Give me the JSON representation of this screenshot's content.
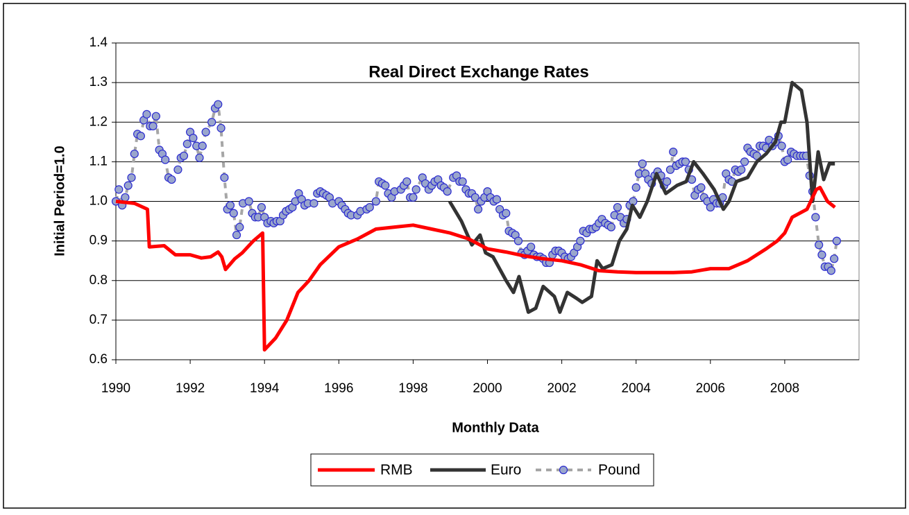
{
  "chart_data": {
    "type": "line",
    "title": "Real Direct Exchange Rates",
    "x_label": "Monthly Data",
    "y_label": "Initial Period=1.0",
    "xlim": [
      1990,
      2010
    ],
    "xticks": [
      1990,
      1992,
      1994,
      1996,
      1998,
      2000,
      2002,
      2004,
      2006,
      2008
    ],
    "ylim": [
      0.6,
      1.4
    ],
    "yticks": [
      0.6,
      0.7,
      0.8,
      0.9,
      {
        "value": 1,
        "label": "1.0"
      },
      1.1,
      1.2,
      1.3,
      1.4
    ],
    "grid": true,
    "legend": "bottom",
    "series": [
      {
        "name": "RMB",
        "color": "#ff0000",
        "line_style": "solid",
        "x": [
          1990.0,
          1990.5,
          1990.85,
          1990.9,
          1991.3,
          1991.6,
          1992.0,
          1992.3,
          1992.55,
          1992.75,
          1992.85,
          1992.95,
          1993.2,
          1993.4,
          1993.7,
          1993.95,
          1994.0,
          1994.3,
          1994.6,
          1994.9,
          1995.2,
          1995.5,
          1996.0,
          1996.5,
          1997.0,
          1997.5,
          1998.0,
          1998.5,
          1999.0,
          1999.5,
          2000.0,
          2000.5,
          2001.0,
          2001.5,
          2002.0,
          2002.5,
          2003.0,
          2003.5,
          2004.0,
          2004.5,
          2005.0,
          2005.5,
          2006.0,
          2006.5,
          2007.0,
          2007.5,
          2007.8,
          2008.0,
          2008.2,
          2008.6,
          2008.85,
          2008.95,
          2009.15,
          2009.35
        ],
        "values": [
          1.0,
          0.995,
          0.98,
          0.885,
          0.888,
          0.865,
          0.865,
          0.857,
          0.86,
          0.872,
          0.86,
          0.828,
          0.855,
          0.87,
          0.9,
          0.92,
          0.625,
          0.655,
          0.7,
          0.77,
          0.8,
          0.84,
          0.885,
          0.905,
          0.93,
          0.935,
          0.94,
          0.93,
          0.92,
          0.905,
          0.88,
          0.872,
          0.862,
          0.855,
          0.85,
          0.84,
          0.825,
          0.822,
          0.82,
          0.82,
          0.82,
          0.822,
          0.83,
          0.83,
          0.85,
          0.88,
          0.9,
          0.92,
          0.96,
          0.98,
          1.03,
          1.035,
          1.0,
          0.985
        ]
      },
      {
        "name": "Euro",
        "color": "#333333",
        "line_style": "solid",
        "x": [
          1998.98,
          1999.3,
          1999.58,
          1999.8,
          1999.95,
          2000.15,
          2000.5,
          2000.7,
          2000.85,
          2001.1,
          2001.3,
          2001.5,
          2001.8,
          2001.95,
          2002.15,
          2002.4,
          2002.55,
          2002.8,
          2002.95,
          2003.1,
          2003.35,
          2003.55,
          2003.75,
          2003.9,
          2004.1,
          2004.3,
          2004.55,
          2004.8,
          2005.1,
          2005.35,
          2005.55,
          2005.8,
          2006.1,
          2006.35,
          2006.5,
          2006.7,
          2007.0,
          2007.25,
          2007.5,
          2007.75,
          2007.9,
          2008.0,
          2008.2,
          2008.45,
          2008.6,
          2008.75,
          2008.9,
          2009.05,
          2009.2,
          2009.35
        ],
        "values": [
          1.0,
          0.95,
          0.89,
          0.915,
          0.87,
          0.86,
          0.8,
          0.77,
          0.81,
          0.72,
          0.73,
          0.785,
          0.76,
          0.72,
          0.77,
          0.755,
          0.745,
          0.76,
          0.85,
          0.83,
          0.84,
          0.9,
          0.93,
          0.99,
          0.96,
          1.0,
          1.07,
          1.02,
          1.04,
          1.05,
          1.1,
          1.07,
          1.03,
          0.98,
          1.0,
          1.05,
          1.06,
          1.1,
          1.12,
          1.15,
          1.2,
          1.2,
          1.3,
          1.28,
          1.2,
          1.0,
          1.125,
          1.055,
          1.095,
          1.095
        ]
      },
      {
        "name": "Pound",
        "color": "#a6a6a6",
        "line_style": "dashed",
        "marker": "circle",
        "marker_color": "#9aa6cc",
        "marker_edge": "#2a2ad0",
        "x": [
          1990.0,
          1990.08,
          1990.17,
          1990.25,
          1990.33,
          1990.42,
          1990.5,
          1990.58,
          1990.67,
          1990.75,
          1990.83,
          1990.92,
          1991.0,
          1991.08,
          1991.17,
          1991.25,
          1991.33,
          1991.42,
          1991.5,
          1991.67,
          1991.75,
          1991.83,
          1991.92,
          1992.0,
          1992.08,
          1992.17,
          1992.25,
          1992.33,
          1992.42,
          1992.58,
          1992.67,
          1992.75,
          1992.83,
          1992.92,
          1993.0,
          1993.08,
          1993.17,
          1993.25,
          1993.33,
          1993.42,
          1993.58,
          1993.67,
          1993.75,
          1993.83,
          1993.92,
          1994.0,
          1994.08,
          1994.17,
          1994.25,
          1994.33,
          1994.42,
          1994.5,
          1994.58,
          1994.67,
          1994.75,
          1994.83,
          1994.92,
          1995.0,
          1995.08,
          1995.17,
          1995.33,
          1995.42,
          1995.5,
          1995.58,
          1995.67,
          1995.75,
          1995.83,
          1996.0,
          1996.08,
          1996.17,
          1996.25,
          1996.33,
          1996.5,
          1996.58,
          1996.75,
          1996.83,
          1997.0,
          1997.08,
          1997.17,
          1997.25,
          1997.33,
          1997.42,
          1997.5,
          1997.67,
          1997.75,
          1997.83,
          1997.92,
          1998.0,
          1998.08,
          1998.25,
          1998.33,
          1998.42,
          1998.5,
          1998.58,
          1998.67,
          1998.75,
          1998.83,
          1998.92,
          1999.08,
          1999.17,
          1999.25,
          1999.33,
          1999.42,
          1999.5,
          1999.58,
          1999.67,
          1999.75,
          1999.83,
          1999.92,
          2000.0,
          2000.08,
          2000.17,
          2000.25,
          2000.33,
          2000.42,
          2000.5,
          2000.58,
          2000.67,
          2000.75,
          2000.83,
          2000.92,
          2001.0,
          2001.08,
          2001.17,
          2001.25,
          2001.33,
          2001.42,
          2001.5,
          2001.58,
          2001.67,
          2001.75,
          2001.83,
          2001.92,
          2002.0,
          2002.08,
          2002.17,
          2002.25,
          2002.33,
          2002.42,
          2002.5,
          2002.58,
          2002.67,
          2002.75,
          2002.83,
          2002.92,
          2003.0,
          2003.08,
          2003.17,
          2003.25,
          2003.33,
          2003.42,
          2003.5,
          2003.58,
          2003.67,
          2003.75,
          2003.83,
          2003.92,
          2004.0,
          2004.08,
          2004.17,
          2004.25,
          2004.33,
          2004.42,
          2004.5,
          2004.58,
          2004.67,
          2004.75,
          2004.83,
          2004.92,
          2005.0,
          2005.08,
          2005.17,
          2005.25,
          2005.33,
          2005.42,
          2005.5,
          2005.58,
          2005.67,
          2005.75,
          2005.83,
          2005.92,
          2006.0,
          2006.08,
          2006.17,
          2006.25,
          2006.33,
          2006.42,
          2006.5,
          2006.58,
          2006.67,
          2006.75,
          2006.83,
          2006.92,
          2007.0,
          2007.08,
          2007.17,
          2007.25,
          2007.33,
          2007.42,
          2007.5,
          2007.58,
          2007.67,
          2007.75,
          2007.83,
          2007.92,
          2008.0,
          2008.08,
          2008.17,
          2008.25,
          2008.33,
          2008.42,
          2008.5,
          2008.58,
          2008.67,
          2008.75,
          2008.83,
          2008.92,
          2009.0,
          2009.08,
          2009.17,
          2009.25,
          2009.33,
          2009.4
        ],
        "values": [
          1.0,
          1.03,
          0.99,
          1.01,
          1.04,
          1.06,
          1.12,
          1.17,
          1.165,
          1.205,
          1.22,
          1.19,
          1.19,
          1.215,
          1.13,
          1.12,
          1.105,
          1.06,
          1.055,
          1.08,
          1.11,
          1.115,
          1.145,
          1.175,
          1.16,
          1.14,
          1.11,
          1.14,
          1.175,
          1.2,
          1.235,
          1.245,
          1.185,
          1.06,
          0.98,
          0.99,
          0.97,
          0.915,
          0.935,
          0.995,
          1.0,
          0.97,
          0.96,
          0.96,
          0.985,
          0.96,
          0.945,
          0.95,
          0.945,
          0.95,
          0.95,
          0.965,
          0.975,
          0.98,
          0.985,
          1.0,
          1.02,
          1.005,
          0.99,
          0.995,
          0.995,
          1.02,
          1.025,
          1.02,
          1.015,
          1.01,
          0.995,
          1.0,
          0.99,
          0.98,
          0.97,
          0.965,
          0.965,
          0.975,
          0.98,
          0.985,
          1.0,
          1.05,
          1.045,
          1.04,
          1.02,
          1.01,
          1.025,
          1.03,
          1.04,
          1.05,
          1.01,
          1.01,
          1.03,
          1.06,
          1.045,
          1.03,
          1.04,
          1.05,
          1.055,
          1.04,
          1.035,
          1.025,
          1.06,
          1.065,
          1.05,
          1.05,
          1.03,
          1.02,
          1.02,
          1.01,
          0.98,
          1.0,
          1.01,
          1.025,
          1.01,
          1.0,
          1.005,
          0.98,
          0.965,
          0.97,
          0.925,
          0.92,
          0.915,
          0.9,
          0.87,
          0.865,
          0.875,
          0.885,
          0.865,
          0.86,
          0.86,
          0.855,
          0.845,
          0.845,
          0.865,
          0.875,
          0.875,
          0.87,
          0.86,
          0.855,
          0.86,
          0.87,
          0.885,
          0.9,
          0.925,
          0.92,
          0.93,
          0.93,
          0.935,
          0.945,
          0.955,
          0.945,
          0.94,
          0.935,
          0.965,
          0.985,
          0.96,
          0.945,
          0.955,
          0.99,
          1.0,
          1.035,
          1.07,
          1.095,
          1.07,
          1.055,
          1.045,
          1.065,
          1.075,
          1.065,
          1.04,
          1.05,
          1.08,
          1.125,
          1.09,
          1.095,
          1.1,
          1.1,
          1.08,
          1.055,
          1.015,
          1.03,
          1.035,
          1.01,
          1.0,
          0.985,
          1.005,
          0.995,
          0.995,
          1.01,
          1.07,
          1.055,
          1.05,
          1.08,
          1.075,
          1.08,
          1.1,
          1.135,
          1.125,
          1.12,
          1.115,
          1.14,
          1.14,
          1.135,
          1.155,
          1.14,
          1.15,
          1.165,
          1.14,
          1.1,
          1.105,
          1.125,
          1.12,
          1.115,
          1.115,
          1.115,
          1.115,
          1.065,
          1.025,
          0.96,
          0.89,
          0.865,
          0.835,
          0.835,
          0.825,
          0.855,
          0.9
        ]
      }
    ]
  }
}
